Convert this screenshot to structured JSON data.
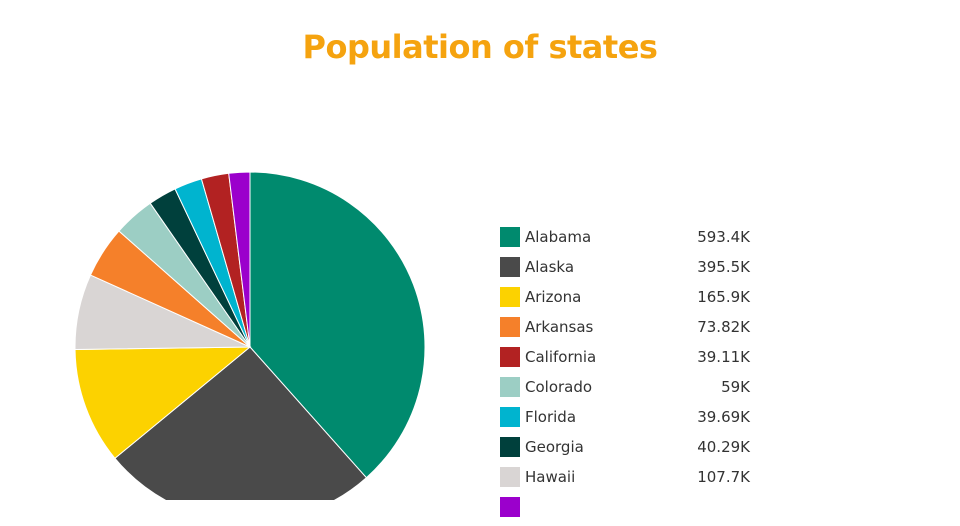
{
  "chart_data": {
    "type": "pie",
    "title": "Population of states",
    "title_color": "#F5A30F",
    "slices": [
      {
        "label": "Alabama",
        "value_label": "593.4K",
        "value": 593400,
        "color": "#008A6E"
      },
      {
        "label": "Alaska",
        "value_label": "395.5K",
        "value": 395500,
        "color": "#4A4A4A"
      },
      {
        "label": "Arizona",
        "value_label": "165.9K",
        "value": 165900,
        "color": "#FCD200"
      },
      {
        "label": "Arkansas",
        "value_label": "73.82K",
        "value": 73820,
        "color": "#F5802A"
      },
      {
        "label": "California",
        "value_label": "39.11K",
        "value": 39110,
        "color": "#B22222"
      },
      {
        "label": "Colorado",
        "value_label": "59K",
        "value": 59000,
        "color": "#9CCEC4"
      },
      {
        "label": "Florida",
        "value_label": "39.69K",
        "value": 39690,
        "color": "#00B4CF"
      },
      {
        "label": "Georgia",
        "value_label": "40.29K",
        "value": 40290,
        "color": "#00403C"
      },
      {
        "label": "Hawaii",
        "value_label": "107.7K",
        "value": 107700,
        "color": "#D9D5D4"
      },
      {
        "label": "",
        "value_label": "",
        "value": 30000,
        "color": "#9B00CC"
      }
    ],
    "legend_position": "right",
    "slice_order": "Alabama starts at top, clockwise",
    "slices_after_alabama_order": [
      "Alaska",
      "Arizona",
      "Hawaii",
      "Arkansas",
      "Colorado",
      "Georgia",
      "Florida",
      "California",
      ""
    ]
  }
}
